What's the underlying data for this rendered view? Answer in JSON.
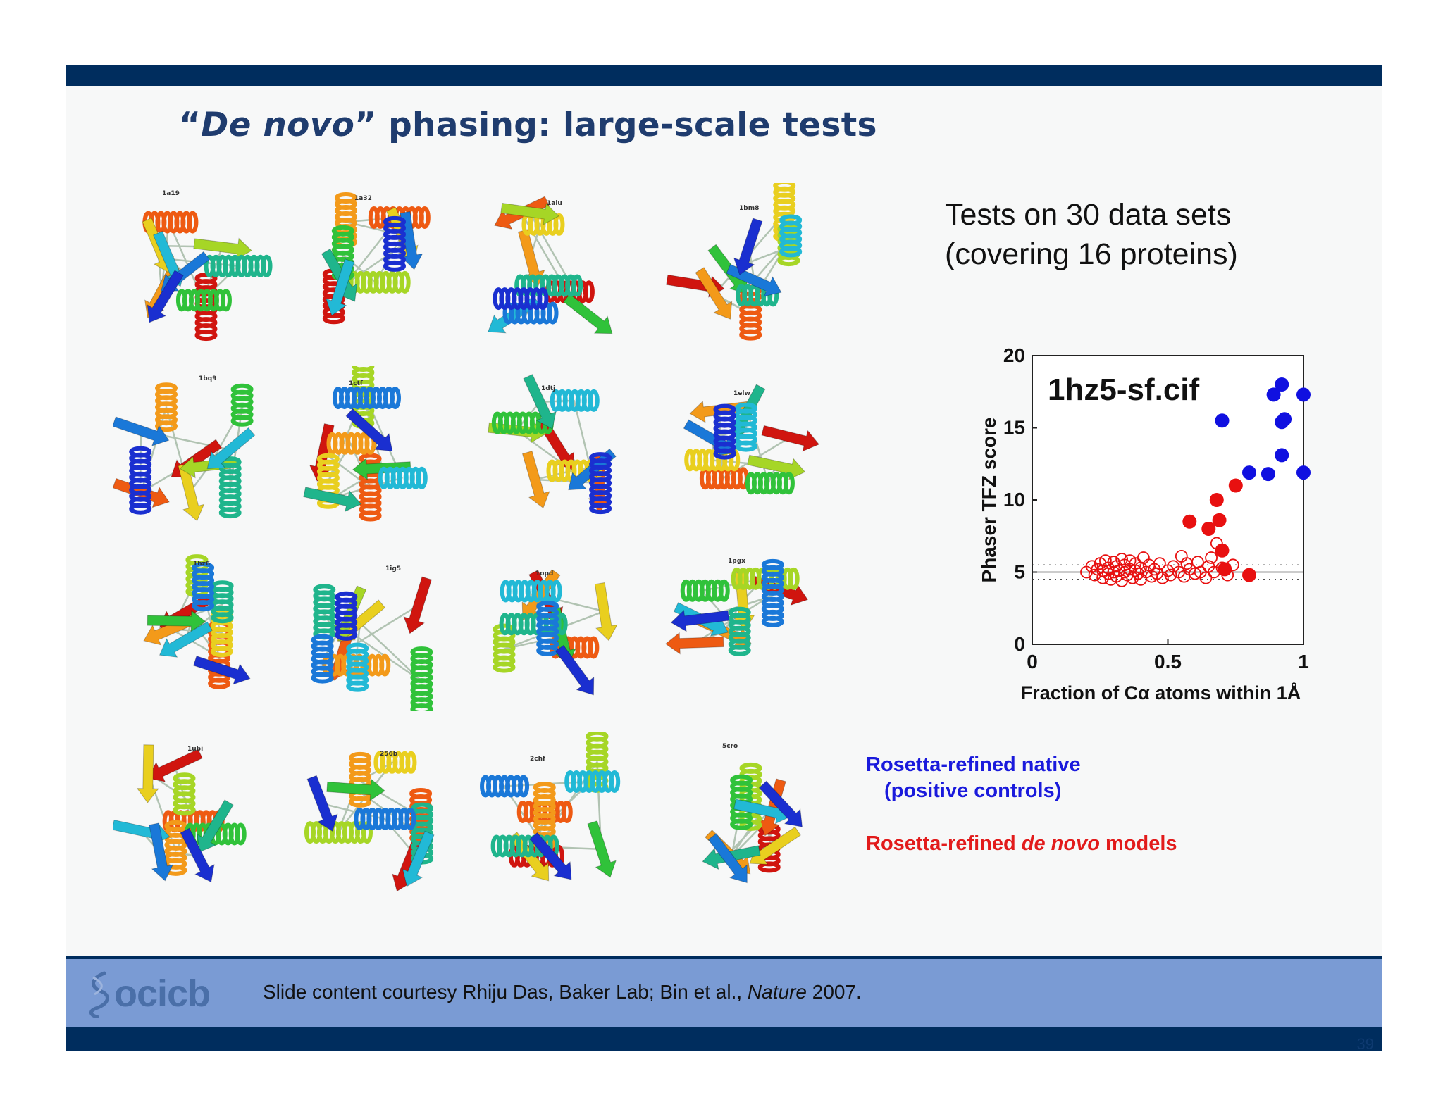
{
  "slide": {
    "title_quote_open": "“",
    "title_italic": "De novo",
    "title_rest": "” phasing: large-scale tests",
    "tests_line1": "Tests on 30 data sets",
    "tests_line2": "(covering 16 proteins)",
    "legend_native_line1": "Rosetta-refined native",
    "legend_native_line2": "(positive controls)",
    "legend_denovo_prefix": "Rosetta-refined ",
    "legend_denovo_italic": "de novo",
    "legend_denovo_suffix": " models",
    "credit_prefix": "Slide content courtesy Rhiju Das, Baker Lab; Bin et al., ",
    "credit_italic": "Nature",
    "credit_suffix": " 2007.",
    "logo_text": "ocicb",
    "page_number": "39"
  },
  "proteins": [
    "1a19",
    "1a32",
    "1aiu",
    "1bm8",
    "1bq9",
    "1ctf",
    "1dtj",
    "1elw",
    "1hz6",
    "1ig5",
    "1opd",
    "1pgx",
    "1ubi",
    "256b",
    "2chf",
    "5cro"
  ],
  "colors": {
    "navy": "#002d5e",
    "title": "#1f3c6e",
    "footer": "#7a9bd4",
    "native_blue": "#1a1adc",
    "denovo_red": "#e21b1b"
  },
  "chart_data": {
    "type": "scatter",
    "title": "1hz5-sf.cif",
    "xlabel": "Fraction of Cα atoms within 1Å",
    "ylabel": "Phaser TFZ score",
    "xlim": [
      0,
      1
    ],
    "ylim": [
      0,
      20
    ],
    "xticks": [
      "0",
      "0.5",
      "1"
    ],
    "yticks": [
      "0",
      "5",
      "10",
      "15",
      "20"
    ],
    "reference_lines": [
      4.5,
      5,
      5.5
    ],
    "series": [
      {
        "name": "Rosetta-refined native (positive controls)",
        "color": "#1010e0",
        "marker": "filled",
        "points": [
          [
            0.7,
            15.5
          ],
          [
            0.8,
            11.9
          ],
          [
            0.87,
            11.8
          ],
          [
            0.89,
            17.3
          ],
          [
            0.92,
            18.0
          ],
          [
            0.92,
            13.1
          ],
          [
            0.92,
            15.4
          ],
          [
            0.93,
            15.6
          ],
          [
            1.0,
            17.3
          ],
          [
            1.0,
            11.9
          ]
        ]
      },
      {
        "name": "Rosetta-refined de novo models (filled)",
        "color": "#e81010",
        "marker": "filled",
        "points": [
          [
            0.58,
            8.5
          ],
          [
            0.65,
            8.0
          ],
          [
            0.68,
            10.0
          ],
          [
            0.69,
            8.6
          ],
          [
            0.7,
            6.5
          ],
          [
            0.71,
            5.2
          ],
          [
            0.75,
            11.0
          ],
          [
            0.8,
            4.8
          ]
        ]
      },
      {
        "name": "Rosetta-refined de novo models (open)",
        "color": "#e81010",
        "marker": "open",
        "points": [
          [
            0.2,
            5.0
          ],
          [
            0.22,
            5.4
          ],
          [
            0.23,
            4.8
          ],
          [
            0.24,
            5.2
          ],
          [
            0.25,
            5.6
          ],
          [
            0.26,
            4.6
          ],
          [
            0.26,
            5.1
          ],
          [
            0.27,
            5.8
          ],
          [
            0.28,
            4.9
          ],
          [
            0.28,
            5.3
          ],
          [
            0.29,
            4.5
          ],
          [
            0.3,
            5.0
          ],
          [
            0.3,
            5.7
          ],
          [
            0.31,
            4.7
          ],
          [
            0.31,
            5.4
          ],
          [
            0.32,
            5.1
          ],
          [
            0.33,
            4.4
          ],
          [
            0.33,
            5.9
          ],
          [
            0.34,
            5.0
          ],
          [
            0.34,
            5.5
          ],
          [
            0.35,
            4.8
          ],
          [
            0.36,
            5.2
          ],
          [
            0.36,
            5.8
          ],
          [
            0.37,
            4.6
          ],
          [
            0.38,
            5.1
          ],
          [
            0.38,
            5.6
          ],
          [
            0.39,
            4.9
          ],
          [
            0.4,
            5.3
          ],
          [
            0.4,
            4.5
          ],
          [
            0.41,
            6.0
          ],
          [
            0.42,
            5.0
          ],
          [
            0.43,
            5.5
          ],
          [
            0.44,
            4.7
          ],
          [
            0.45,
            5.2
          ],
          [
            0.46,
            4.9
          ],
          [
            0.47,
            5.6
          ],
          [
            0.48,
            4.6
          ],
          [
            0.5,
            5.1
          ],
          [
            0.51,
            4.8
          ],
          [
            0.52,
            5.4
          ],
          [
            0.54,
            5.0
          ],
          [
            0.55,
            6.1
          ],
          [
            0.56,
            4.7
          ],
          [
            0.57,
            5.6
          ],
          [
            0.58,
            5.2
          ],
          [
            0.6,
            4.9
          ],
          [
            0.61,
            5.7
          ],
          [
            0.62,
            5.0
          ],
          [
            0.64,
            4.6
          ],
          [
            0.65,
            5.4
          ],
          [
            0.66,
            6.0
          ],
          [
            0.67,
            5.0
          ],
          [
            0.68,
            7.0
          ],
          [
            0.7,
            5.3
          ],
          [
            0.72,
            4.8
          ],
          [
            0.74,
            5.5
          ]
        ]
      }
    ]
  }
}
